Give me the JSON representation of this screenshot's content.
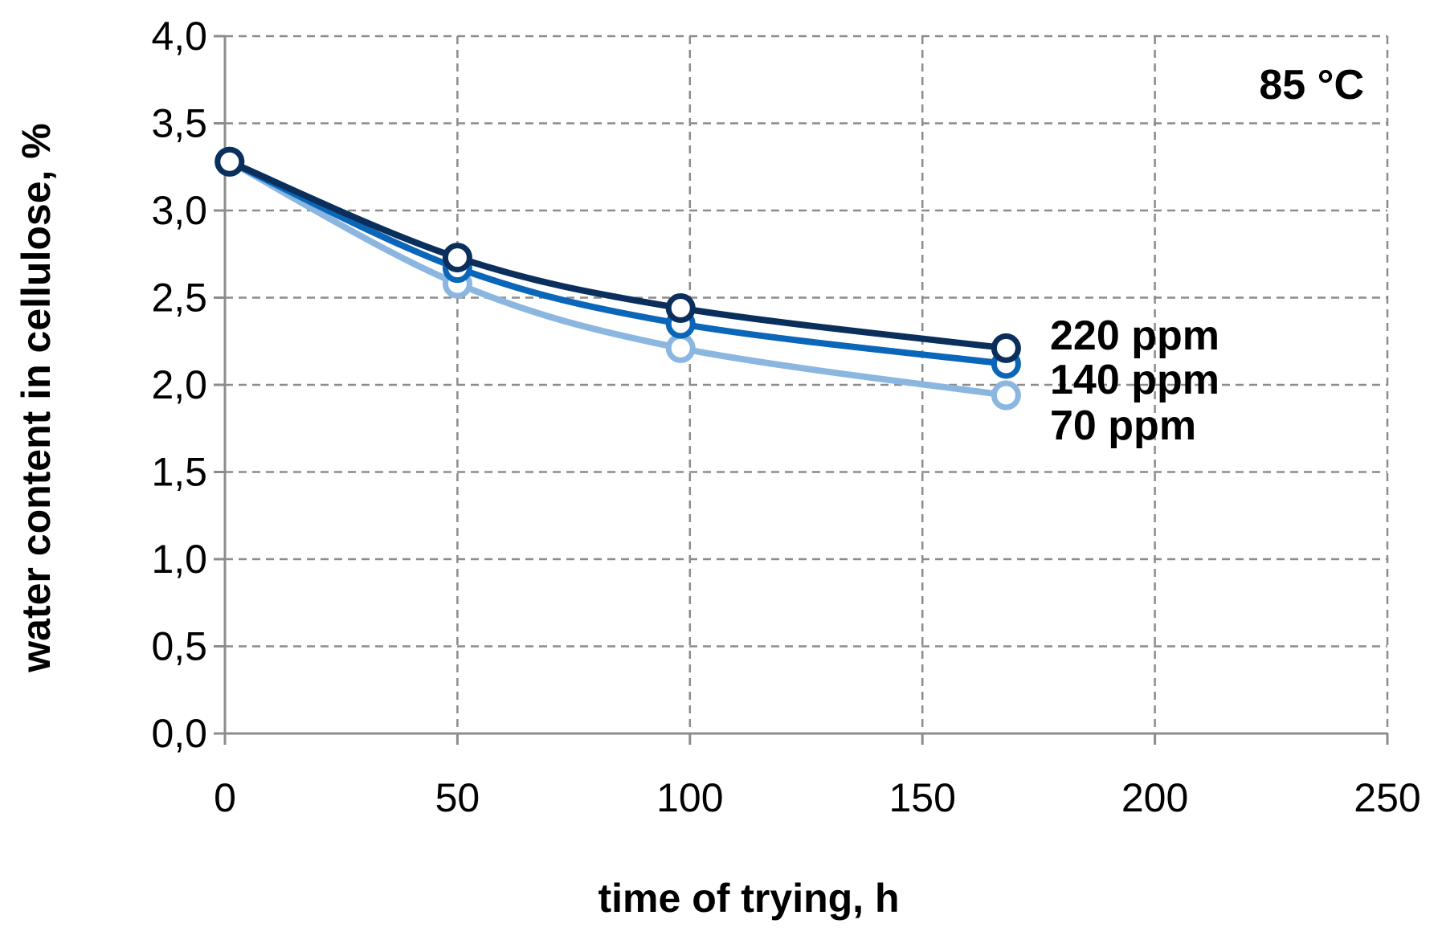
{
  "chart_data": {
    "type": "line",
    "title": "",
    "xlabel": "time of trying, h",
    "ylabel": "water content in cellulose, %",
    "xlim": [
      0,
      250
    ],
    "ylim": [
      0.0,
      4.0
    ],
    "x_ticks": [
      "0",
      "50",
      "100",
      "150",
      "200",
      "250"
    ],
    "x_tick_values": [
      0,
      50,
      100,
      150,
      200,
      250
    ],
    "y_ticks": [
      "0,0",
      "0,5",
      "1,0",
      "1,5",
      "2,0",
      "2,5",
      "3,0",
      "3,5",
      "4,0"
    ],
    "y_tick_values": [
      0.0,
      0.5,
      1.0,
      1.5,
      2.0,
      2.5,
      3.0,
      3.5,
      4.0
    ],
    "grid": true,
    "legend": "inline labels at right end of lines",
    "annotation": "85 °C",
    "series": [
      {
        "name": "220 ppm",
        "color": "#0b2f5c",
        "x": [
          1,
          50,
          98,
          168
        ],
        "y": [
          3.28,
          2.73,
          2.44,
          2.21
        ]
      },
      {
        "name": "140 ppm",
        "color": "#0a66b8",
        "x": [
          1,
          50,
          98,
          168
        ],
        "y": [
          3.28,
          2.67,
          2.35,
          2.12
        ]
      },
      {
        "name": "70 ppm",
        "color": "#8ab6e0",
        "x": [
          1,
          50,
          98,
          168
        ],
        "y": [
          3.28,
          2.58,
          2.21,
          1.94
        ]
      }
    ]
  }
}
